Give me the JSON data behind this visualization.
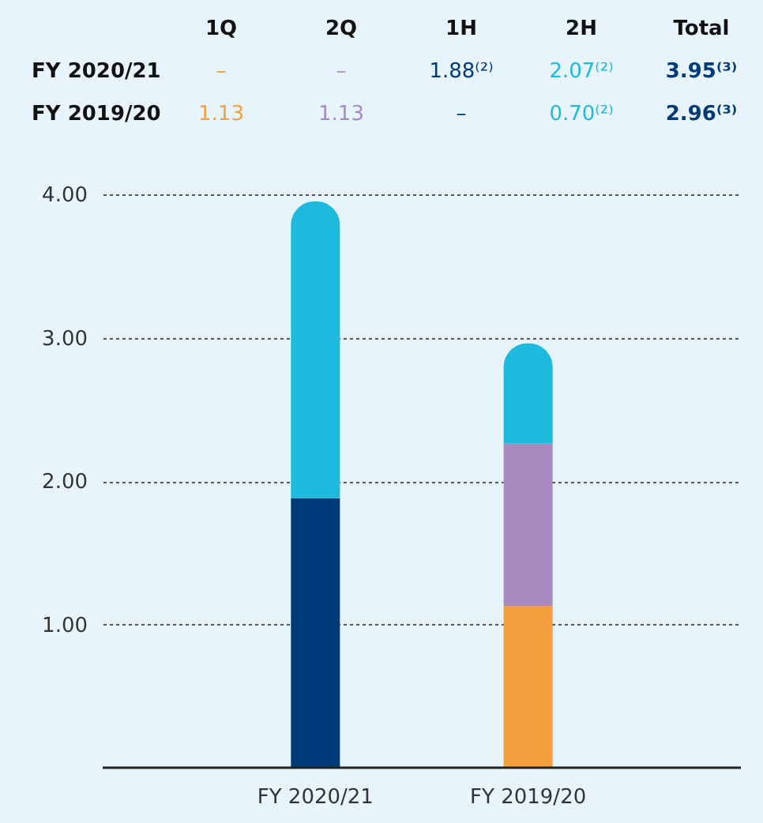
{
  "chart_data": {
    "type": "bar",
    "stacked": true,
    "categories": [
      "FY 2020/21",
      "FY 2019/20"
    ],
    "series": [
      {
        "color": "#f5a040",
        "values": [
          null,
          1.13
        ]
      },
      {
        "color": "#a98bc2",
        "values": [
          null,
          1.13
        ]
      },
      {
        "color": "#003a78",
        "values": [
          1.88,
          null
        ]
      },
      {
        "color": "#1dbade",
        "values": [
          2.07,
          0.7
        ]
      }
    ],
    "annotations": [
      "1Q",
      "2Q",
      "1H",
      "2H",
      "Total",
      "FY 2020/21",
      "–",
      "–",
      "1.88⁽²⁾",
      "2.07⁽²⁾",
      "3.95⁽³⁾",
      "FY 2019/20",
      "1.13",
      "1.13",
      "–",
      "0.70⁽²⁾",
      "2.96⁽³⁾"
    ],
    "ylim": [
      0,
      4
    ],
    "yticks": [
      {
        "value": 1,
        "label": "1.00"
      },
      {
        "value": 2,
        "label": "2.00"
      },
      {
        "value": 3,
        "label": "3.00"
      },
      {
        "value": 4,
        "label": "4.00"
      }
    ],
    "grid": "y"
  }
}
